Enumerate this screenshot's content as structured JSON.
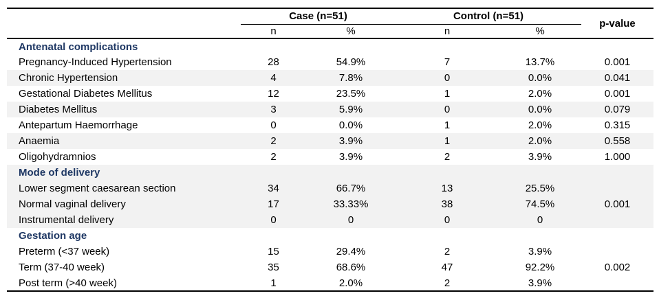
{
  "header": {
    "case_label": "Case (n=51)",
    "control_label": "Control (n=51)",
    "p_value_label": "p-value",
    "case_sub": [
      "n",
      "%"
    ],
    "control_sub": [
      "n",
      "%"
    ]
  },
  "sections": [
    {
      "title": "Antenatal complications",
      "shaded": false,
      "rows": [
        {
          "label": "Pregnancy-Induced Hypertension",
          "case_n": "28",
          "case_pct": "54.9%",
          "control_n": "7",
          "control_pct": "13.7%",
          "p_value": "0.001",
          "shaded": false
        },
        {
          "label": "Chronic Hypertension",
          "case_n": "4",
          "case_pct": "7.8%",
          "control_n": "0",
          "control_pct": "0.0%",
          "p_value": "0.041",
          "shaded": true
        },
        {
          "label": "Gestational Diabetes Mellitus",
          "case_n": "12",
          "case_pct": "23.5%",
          "control_n": "1",
          "control_pct": "2.0%",
          "p_value": "0.001",
          "shaded": false
        },
        {
          "label": "Diabetes Mellitus",
          "case_n": "3",
          "case_pct": "5.9%",
          "control_n": "0",
          "control_pct": "0.0%",
          "p_value": "0.079",
          "shaded": true
        },
        {
          "label": "Antepartum Haemorrhage",
          "case_n": "0",
          "case_pct": "0.0%",
          "control_n": "1",
          "control_pct": "2.0%",
          "p_value": "0.315",
          "shaded": false
        },
        {
          "label": "Anaemia",
          "case_n": "2",
          "case_pct": "3.9%",
          "control_n": "1",
          "control_pct": "2.0%",
          "p_value": "0.558",
          "shaded": true
        },
        {
          "label": "Oligohydramnios",
          "case_n": "2",
          "case_pct": "3.9%",
          "control_n": "2",
          "control_pct": "3.9%",
          "p_value": "1.000",
          "shaded": false
        }
      ]
    },
    {
      "title": "Mode of delivery",
      "shaded": true,
      "rows": [
        {
          "label": "Lower segment caesarean section",
          "case_n": "34",
          "case_pct": "66.7%",
          "control_n": "13",
          "control_pct": "25.5%",
          "p_value": "",
          "shaded": true
        },
        {
          "label": "Normal vaginal delivery",
          "case_n": "17",
          "case_pct": "33.33%",
          "control_n": "38",
          "control_pct": "74.5%",
          "p_value": "0.001",
          "shaded": true
        },
        {
          "label": "Instrumental delivery",
          "case_n": "0",
          "case_pct": "0",
          "control_n": "0",
          "control_pct": "0",
          "p_value": "",
          "shaded": true
        }
      ]
    },
    {
      "title": "Gestation age",
      "shaded": false,
      "rows": [
        {
          "label": "Preterm (<37 week)",
          "case_n": "15",
          "case_pct": "29.4%",
          "control_n": "2",
          "control_pct": "3.9%",
          "p_value": "",
          "shaded": false
        },
        {
          "label": "Term (37-40 week)",
          "case_n": "35",
          "case_pct": "68.6%",
          "control_n": "47",
          "control_pct": "92.2%",
          "p_value": "0.002",
          "shaded": false
        },
        {
          "label": "Post term (>40 week)",
          "case_n": "1",
          "case_pct": "2.0%",
          "control_n": "2",
          "control_pct": "3.9%",
          "p_value": "",
          "shaded": false
        }
      ]
    }
  ],
  "colors": {
    "section_title": "#1F3864",
    "row_band": "#F2F2F2",
    "border": "#000000",
    "text": "#000000"
  }
}
